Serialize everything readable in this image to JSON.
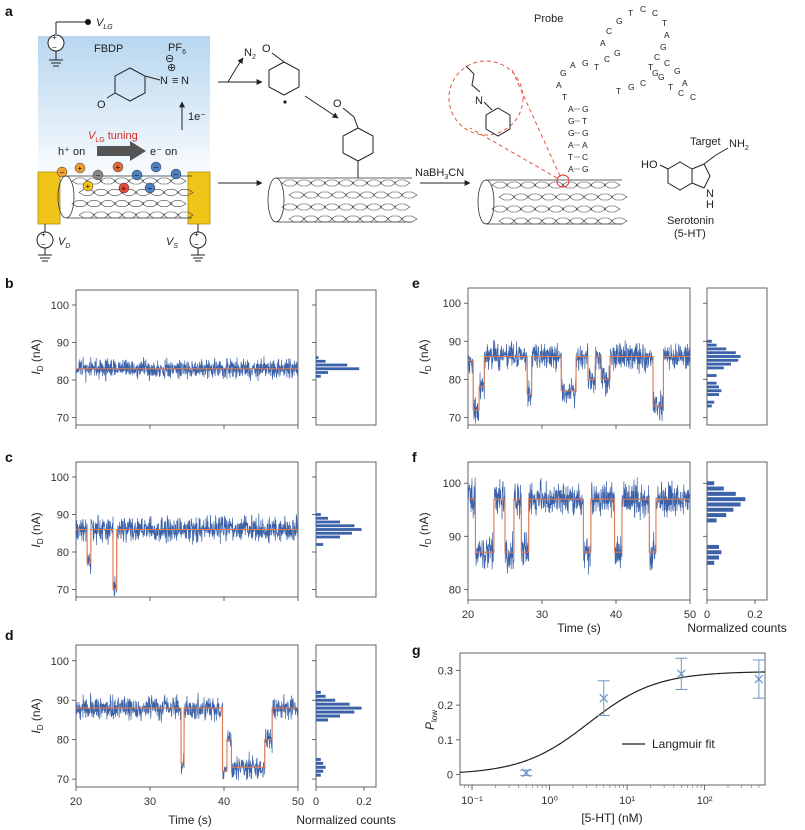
{
  "panel_labels": [
    "a",
    "b",
    "c",
    "d",
    "e",
    "f",
    "g"
  ],
  "schematic": {
    "v_lg": "V",
    "v_lg_sub": "LG",
    "fbdp": "FBDP",
    "pf6": "PF",
    "pf6_sub": "6",
    "minus_sign": "⊖",
    "plus_sign": "⊕",
    "n2": "N",
    "n2_sub": "2",
    "electron": "1e⁻",
    "tuning_prefix": "V",
    "tuning_sub": "LG",
    "tuning_suffix": " tuning",
    "hole_on": "h⁺ on",
    "electron_on": "e⁻ on",
    "v_d": "V",
    "v_d_sub": "D",
    "v_s": "V",
    "v_s_sub": "S",
    "reagent": "NaBH",
    "reagent_sub": "3",
    "reagent_suffix": "CN",
    "probe": "Probe",
    "target": "Target",
    "nh2": "NH",
    "nh2_sub": "2",
    "ho": "HO",
    "nh": "N",
    "h": "H",
    "serotonin": "Serotonin",
    "serotonin_abbr": "(5-HT)",
    "aptamer_bases": [
      "A",
      "T",
      "A",
      "G",
      "G",
      "A",
      "G",
      "C",
      "A",
      "G",
      "T",
      "G",
      "T",
      "A",
      "G",
      "A",
      "G",
      "T",
      "C",
      "G",
      "A",
      "C",
      "G",
      "T",
      "C",
      "C",
      "T",
      "A",
      "G",
      "C",
      "T",
      "G",
      "T",
      "C",
      "C",
      "A",
      "G",
      "C",
      "G",
      "C",
      "G",
      "T"
    ],
    "colors": {
      "buffer_top": "#b7d6ef",
      "buffer_bottom": "#ffffff",
      "electrode": "#f0c419",
      "red": "#e64545",
      "tuning_red": "#d62b2b",
      "dashed": "#e05b3c"
    }
  },
  "axes": {
    "current_label": "I",
    "current_sub": "D",
    "current_unit": " (nA)",
    "time_label": "Time (s)",
    "hist_label": "Normalized counts",
    "p_low_label": "P",
    "p_low_sub": "low",
    "conc_label": "[5-HT] (nM)"
  },
  "legend": {
    "langmuir": "Langmuir fit"
  },
  "chart_data": [
    {
      "panel": "b",
      "type": "line",
      "xlim": [
        20,
        50
      ],
      "ylim": [
        68,
        104
      ],
      "yticks": [
        70,
        80,
        90,
        100
      ],
      "levels": [
        {
          "t0": 20,
          "t1": 50,
          "v": 83
        }
      ],
      "noise": 1.6,
      "histogram": [
        {
          "y": 81,
          "c": 0.02
        },
        {
          "y": 82,
          "c": 0.05
        },
        {
          "y": 83,
          "c": 0.18
        },
        {
          "y": 84,
          "c": 0.13
        },
        {
          "y": 85,
          "c": 0.04
        },
        {
          "y": 86,
          "c": 0.01
        }
      ],
      "hist_xlim": [
        0,
        0.25
      ]
    },
    {
      "panel": "c",
      "type": "line",
      "xlim": [
        20,
        50
      ],
      "ylim": [
        68,
        104
      ],
      "yticks": [
        70,
        80,
        90,
        100
      ],
      "levels": [
        {
          "t0": 20,
          "t1": 21.5,
          "v": 86
        },
        {
          "t0": 21.5,
          "t1": 22,
          "v": 77
        },
        {
          "t0": 22,
          "t1": 25,
          "v": 86
        },
        {
          "t0": 25,
          "t1": 25.5,
          "v": 70
        },
        {
          "t0": 25.5,
          "t1": 50,
          "v": 86
        }
      ],
      "noise": 2.0,
      "histogram": [
        {
          "y": 82,
          "c": 0.03
        },
        {
          "y": 84,
          "c": 0.1
        },
        {
          "y": 85,
          "c": 0.15
        },
        {
          "y": 86,
          "c": 0.19
        },
        {
          "y": 87,
          "c": 0.16
        },
        {
          "y": 88,
          "c": 0.1
        },
        {
          "y": 89,
          "c": 0.05
        },
        {
          "y": 90,
          "c": 0.02
        }
      ],
      "hist_xlim": [
        0,
        0.25
      ]
    },
    {
      "panel": "d",
      "type": "line",
      "xlim": [
        20,
        50
      ],
      "ylim": [
        68,
        104
      ],
      "yticks": [
        70,
        80,
        90,
        100
      ],
      "xticks": [
        20,
        30,
        40,
        50
      ],
      "levels": [
        {
          "t0": 20,
          "t1": 34.2,
          "v": 88
        },
        {
          "t0": 34.2,
          "t1": 34.6,
          "v": 74
        },
        {
          "t0": 34.6,
          "t1": 39.8,
          "v": 88
        },
        {
          "t0": 39.8,
          "t1": 40.4,
          "v": 72
        },
        {
          "t0": 40.4,
          "t1": 41,
          "v": 80
        },
        {
          "t0": 41,
          "t1": 45.5,
          "v": 73
        },
        {
          "t0": 45.5,
          "t1": 46.5,
          "v": 80
        },
        {
          "t0": 46.5,
          "t1": 50,
          "v": 88
        }
      ],
      "noise": 1.8,
      "histogram": [
        {
          "y": 71,
          "c": 0.02
        },
        {
          "y": 72,
          "c": 0.03
        },
        {
          "y": 73,
          "c": 0.04
        },
        {
          "y": 74,
          "c": 0.03
        },
        {
          "y": 75,
          "c": 0.02
        },
        {
          "y": 85,
          "c": 0.05
        },
        {
          "y": 86,
          "c": 0.1
        },
        {
          "y": 87,
          "c": 0.16
        },
        {
          "y": 88,
          "c": 0.19
        },
        {
          "y": 89,
          "c": 0.14
        },
        {
          "y": 90,
          "c": 0.08
        },
        {
          "y": 91,
          "c": 0.04
        },
        {
          "y": 92,
          "c": 0.02
        }
      ],
      "hist_xlim": [
        0,
        0.25
      ],
      "hist_xticks": [
        0,
        0.2
      ]
    },
    {
      "panel": "e",
      "type": "line",
      "xlim": [
        20,
        50
      ],
      "ylim": [
        68,
        104
      ],
      "yticks": [
        70,
        80,
        90,
        100
      ],
      "levels": [
        {
          "t0": 20,
          "t1": 20.7,
          "v": 85
        },
        {
          "t0": 20.7,
          "t1": 21.5,
          "v": 72
        },
        {
          "t0": 21.5,
          "t1": 22.2,
          "v": 78
        },
        {
          "t0": 22.2,
          "t1": 28,
          "v": 86
        },
        {
          "t0": 28,
          "t1": 28.6,
          "v": 76
        },
        {
          "t0": 28.6,
          "t1": 32.6,
          "v": 86
        },
        {
          "t0": 32.6,
          "t1": 34.6,
          "v": 77
        },
        {
          "t0": 34.6,
          "t1": 36.2,
          "v": 86
        },
        {
          "t0": 36.2,
          "t1": 37.2,
          "v": 80
        },
        {
          "t0": 37.2,
          "t1": 38,
          "v": 86
        },
        {
          "t0": 38,
          "t1": 39.2,
          "v": 80
        },
        {
          "t0": 39.2,
          "t1": 45,
          "v": 86
        },
        {
          "t0": 45,
          "t1": 46.4,
          "v": 73
        },
        {
          "t0": 46.4,
          "t1": 50,
          "v": 86
        }
      ],
      "noise": 2.2,
      "histogram": [
        {
          "y": 73,
          "c": 0.02
        },
        {
          "y": 74,
          "c": 0.03
        },
        {
          "y": 76,
          "c": 0.05
        },
        {
          "y": 77,
          "c": 0.06
        },
        {
          "y": 78,
          "c": 0.05
        },
        {
          "y": 79,
          "c": 0.04
        },
        {
          "y": 81,
          "c": 0.04
        },
        {
          "y": 83,
          "c": 0.07
        },
        {
          "y": 84,
          "c": 0.1
        },
        {
          "y": 85,
          "c": 0.13
        },
        {
          "y": 86,
          "c": 0.14
        },
        {
          "y": 87,
          "c": 0.12
        },
        {
          "y": 88,
          "c": 0.08
        },
        {
          "y": 89,
          "c": 0.04
        },
        {
          "y": 90,
          "c": 0.02
        }
      ],
      "hist_xlim": [
        0,
        0.25
      ]
    },
    {
      "panel": "f",
      "type": "line",
      "xlim": [
        20,
        50
      ],
      "ylim": [
        78,
        104
      ],
      "yticks": [
        80,
        90,
        100
      ],
      "xticks": [
        20,
        30,
        40,
        50
      ],
      "levels": [
        {
          "t0": 20,
          "t1": 21,
          "v": 97
        },
        {
          "t0": 21,
          "t1": 23.5,
          "v": 87
        },
        {
          "t0": 23.5,
          "t1": 25,
          "v": 97
        },
        {
          "t0": 25,
          "t1": 26.2,
          "v": 87
        },
        {
          "t0": 26.2,
          "t1": 27.2,
          "v": 97
        },
        {
          "t0": 27.2,
          "t1": 28.2,
          "v": 87
        },
        {
          "t0": 28.2,
          "t1": 35.6,
          "v": 97
        },
        {
          "t0": 35.6,
          "t1": 36.6,
          "v": 87
        },
        {
          "t0": 36.6,
          "t1": 39.8,
          "v": 97
        },
        {
          "t0": 39.8,
          "t1": 40.8,
          "v": 87
        },
        {
          "t0": 40.8,
          "t1": 44.5,
          "v": 97
        },
        {
          "t0": 44.5,
          "t1": 45.4,
          "v": 87
        },
        {
          "t0": 45.4,
          "t1": 50,
          "v": 97
        }
      ],
      "noise": 2.0,
      "histogram": [
        {
          "y": 85,
          "c": 0.03
        },
        {
          "y": 86,
          "c": 0.05
        },
        {
          "y": 87,
          "c": 0.06
        },
        {
          "y": 88,
          "c": 0.05
        },
        {
          "y": 93,
          "c": 0.04
        },
        {
          "y": 94,
          "c": 0.08
        },
        {
          "y": 95,
          "c": 0.11
        },
        {
          "y": 96,
          "c": 0.14
        },
        {
          "y": 97,
          "c": 0.16
        },
        {
          "y": 98,
          "c": 0.12
        },
        {
          "y": 99,
          "c": 0.07
        },
        {
          "y": 100,
          "c": 0.03
        }
      ],
      "hist_xlim": [
        0,
        0.25
      ],
      "hist_xticks": [
        0,
        0.2
      ]
    },
    {
      "panel": "g",
      "type": "scatter",
      "x_scale": "log",
      "xlim": [
        0.07,
        600
      ],
      "ylim": [
        -0.03,
        0.35
      ],
      "xticks": [
        0.1,
        1,
        10,
        100
      ],
      "xtick_labels": [
        "10⁻¹",
        "10⁰",
        "10¹",
        "10²"
      ],
      "yticks": [
        0,
        0.1,
        0.2,
        0.3
      ],
      "ytick_labels": [
        "0",
        "0.1",
        "0.2",
        "0.3"
      ],
      "points": [
        {
          "x": 0.5,
          "y": 0.005,
          "err": 0.008
        },
        {
          "x": 5,
          "y": 0.22,
          "err": 0.05
        },
        {
          "x": 50,
          "y": 0.29,
          "err": 0.045
        },
        {
          "x": 500,
          "y": 0.275,
          "err": 0.055
        }
      ],
      "fit": {
        "pmax": 0.297,
        "kd": 3.2,
        "n": 1
      },
      "legend_position": "lower-right"
    }
  ]
}
